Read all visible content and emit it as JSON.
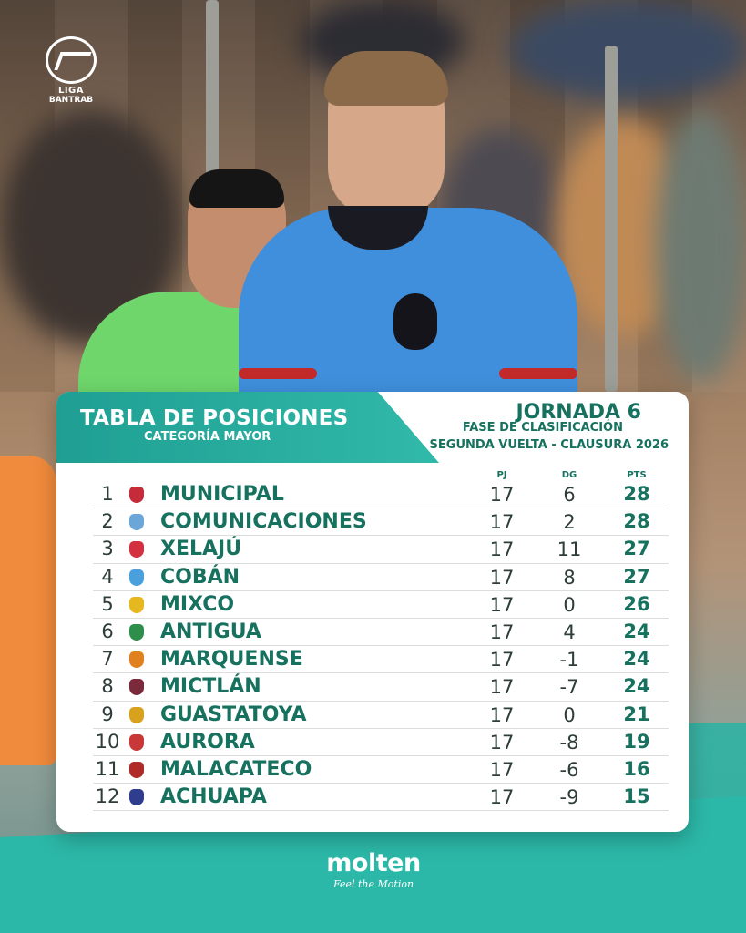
{
  "brand": {
    "league_line1": "LIGA",
    "league_line2": "BANTRAB",
    "sponsor_name": "molten",
    "sponsor_tagline": "Feel the Motion"
  },
  "header": {
    "title": "TABLA DE POSICIONES",
    "subtitle": "CATEGORÍA MAYOR",
    "jornada": "JORNADA 6",
    "fase": "FASE DE CLASIFICACIÓN",
    "vuelta": "SEGUNDA VUELTA - CLAUSURA 2026"
  },
  "columns": {
    "pj": "PJ",
    "dg": "DG",
    "pts": "PTS"
  },
  "colors": {
    "accent": "#17715f",
    "teal": "#2cb8a8",
    "card": "#ffffff"
  },
  "standings": [
    {
      "pos": "1",
      "team": "MUNICIPAL",
      "pj": "17",
      "dg": "6",
      "pts": "28",
      "crest": "#c62b3a"
    },
    {
      "pos": "2",
      "team": "COMUNICACIONES",
      "pj": "17",
      "dg": "2",
      "pts": "28",
      "crest": "#6aa7d8"
    },
    {
      "pos": "3",
      "team": "XELAJÚ",
      "pj": "17",
      "dg": "11",
      "pts": "27",
      "crest": "#d33040"
    },
    {
      "pos": "4",
      "team": "COBÁN",
      "pj": "17",
      "dg": "8",
      "pts": "27",
      "crest": "#4aa0dc"
    },
    {
      "pos": "5",
      "team": "MIXCO",
      "pj": "17",
      "dg": "0",
      "pts": "26",
      "crest": "#e5b81f"
    },
    {
      "pos": "6",
      "team": "ANTIGUA",
      "pj": "17",
      "dg": "4",
      "pts": "24",
      "crest": "#2e8f4b"
    },
    {
      "pos": "7",
      "team": "MARQUENSE",
      "pj": "17",
      "dg": "-1",
      "pts": "24",
      "crest": "#e0801e"
    },
    {
      "pos": "8",
      "team": "MICTLÁN",
      "pj": "17",
      "dg": "-7",
      "pts": "24",
      "crest": "#7a2a3a"
    },
    {
      "pos": "9",
      "team": "GUASTATOYA",
      "pj": "17",
      "dg": "0",
      "pts": "21",
      "crest": "#d8a21c"
    },
    {
      "pos": "10",
      "team": "AURORA",
      "pj": "17",
      "dg": "-8",
      "pts": "19",
      "crest": "#c83838"
    },
    {
      "pos": "11",
      "team": "MALACATECO",
      "pj": "17",
      "dg": "-6",
      "pts": "16",
      "crest": "#b02a2a"
    },
    {
      "pos": "12",
      "team": "ACHUAPA",
      "pj": "17",
      "dg": "-9",
      "pts": "15",
      "crest": "#2e3d8e"
    }
  ]
}
